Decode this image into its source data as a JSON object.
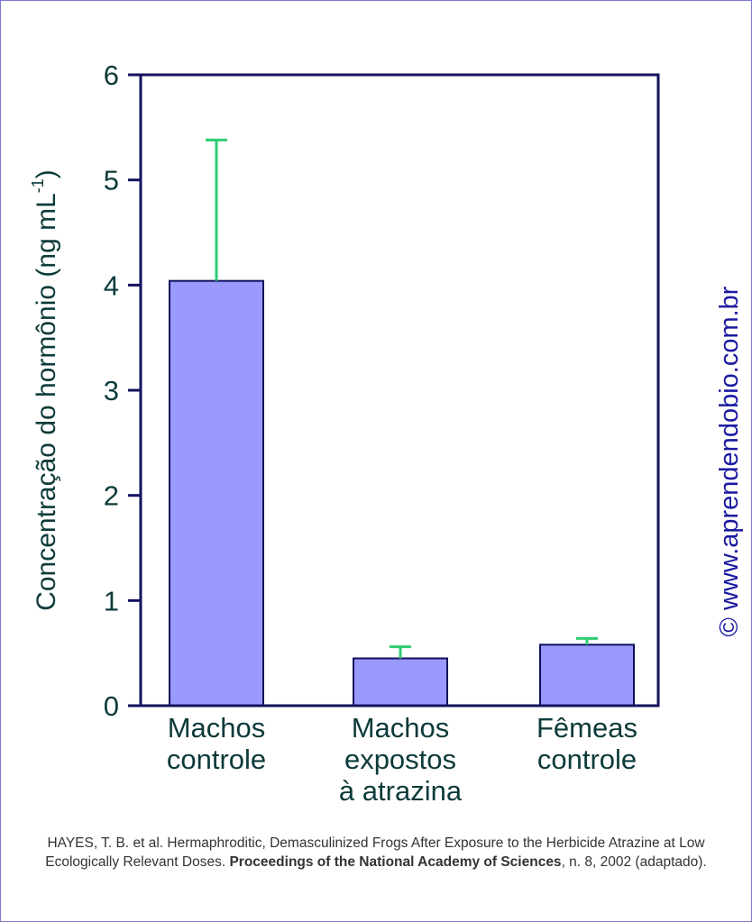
{
  "chart_data": {
    "type": "bar",
    "categories": [
      [
        "Machos",
        "controle"
      ],
      [
        "Machos",
        "expostos",
        "à atrazina"
      ],
      [
        "Fêmeas",
        "controle"
      ]
    ],
    "values": [
      4.04,
      0.45,
      0.58
    ],
    "error_upper": [
      5.38,
      0.56,
      0.64
    ],
    "ylabel": "Concentração do hormônio (ng mL",
    "ylabel_sup": "-1",
    "ylabel_close": ")",
    "ylim": [
      0,
      6
    ],
    "yticks": [
      0,
      1,
      2,
      3,
      4,
      5,
      6
    ],
    "grid": false,
    "colors": {
      "bar": "#9a99fd",
      "bar_stroke": "#10105a",
      "error": "#2ecc71",
      "axis": "#12125e",
      "text": "#0d3a3a"
    }
  },
  "credit": {
    "part1": "HAYES, T. B. et al. Hermaphroditic, Demasculinized Frogs After Exposure to the Herbicide Atrazine at Low Ecologically Relevant Doses.",
    "journal": "Proceedings of the National Academy of Sciences",
    "part2": ", n. 8, 2002 (adaptado)."
  },
  "watermark": "© www.aprendendobio.com.br"
}
